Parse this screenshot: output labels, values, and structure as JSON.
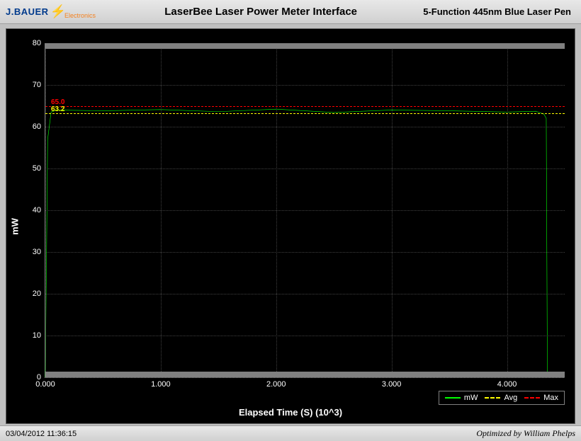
{
  "header": {
    "logo_main": "J.BAUER",
    "logo_sub": "Electronics",
    "title": "LaserBee Laser Power Meter Interface",
    "subtitle": "5-Function 445nm Blue Laser Pen"
  },
  "chart": {
    "type": "line",
    "background_color": "#000000",
    "grid_color": "#404040",
    "axis_color": "#808080",
    "tick_label_color": "#ffffff",
    "tick_fontsize": 11,
    "axis_label_fontsize": 13,
    "y_axis": {
      "label": "mW",
      "min": 0,
      "max": 80,
      "tick_step": 10,
      "ticks": [
        0,
        10,
        20,
        30,
        40,
        50,
        60,
        70,
        80
      ]
    },
    "x_axis": {
      "label": "Elapsed Time (S) (10^3)",
      "min": 0.0,
      "max": 4.5,
      "ticks": [
        0.0,
        1.0,
        2.0,
        3.0,
        4.0
      ],
      "tick_label_decimals": 3
    },
    "gray_bands": [
      {
        "y_from": 78.7,
        "y_to": 80.0,
        "color": "#808080"
      },
      {
        "y_from": 0.0,
        "y_to": 1.3,
        "color": "#808080"
      }
    ],
    "reference_lines": {
      "max": {
        "value": 65.0,
        "label": "65.0",
        "color": "#ff0000",
        "style": "dashed"
      },
      "avg": {
        "value": 63.2,
        "label": "63.2",
        "color": "#ffff00",
        "style": "dashed"
      }
    },
    "series": {
      "mw": {
        "label": "mW",
        "color": "#00ff00",
        "line_width": 2,
        "points": [
          [
            0.0,
            0.0
          ],
          [
            0.02,
            57.0
          ],
          [
            0.05,
            63.5
          ],
          [
            0.1,
            64.0
          ],
          [
            0.5,
            63.8
          ],
          [
            1.0,
            64.1
          ],
          [
            1.5,
            63.6
          ],
          [
            2.0,
            64.2
          ],
          [
            2.5,
            63.4
          ],
          [
            3.0,
            64.0
          ],
          [
            3.5,
            63.8
          ],
          [
            4.0,
            63.5
          ],
          [
            4.25,
            63.7
          ],
          [
            4.32,
            63.0
          ],
          [
            4.34,
            62.0
          ],
          [
            4.35,
            0.5
          ],
          [
            4.5,
            0.5
          ]
        ]
      }
    },
    "legend": {
      "border_color": "#808080",
      "items": [
        {
          "label": "mW",
          "color": "#00ff00",
          "style": "solid"
        },
        {
          "label": "Avg",
          "color": "#ffff00",
          "style": "dashed"
        },
        {
          "label": "Max",
          "color": "#ff0000",
          "style": "dashed"
        }
      ]
    }
  },
  "footer": {
    "timestamp": "03/04/2012 11:36:15",
    "credit": "Optimized by William Phelps"
  }
}
